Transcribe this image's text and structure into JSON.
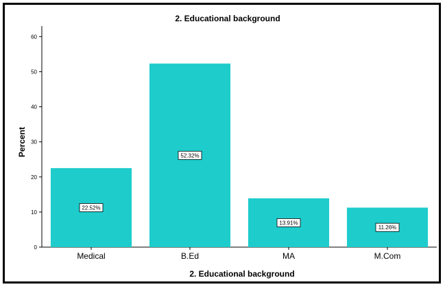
{
  "chart_data": {
    "type": "bar",
    "title": "2. Educational background",
    "xlabel": "2. Educational background",
    "ylabel": "Percent",
    "categories": [
      "Medical",
      "B.Ed",
      "MA",
      "M.Com"
    ],
    "values": [
      22.52,
      52.32,
      13.91,
      11.26
    ],
    "data_labels": [
      "22.52%",
      "52.32%",
      "13.91%",
      "11.26%"
    ],
    "ylim": [
      0,
      63
    ],
    "yticks": [
      0,
      10,
      20,
      30,
      40,
      50,
      60
    ],
    "bar_color": "#1ecccc",
    "grid": false,
    "legend": "none"
  }
}
